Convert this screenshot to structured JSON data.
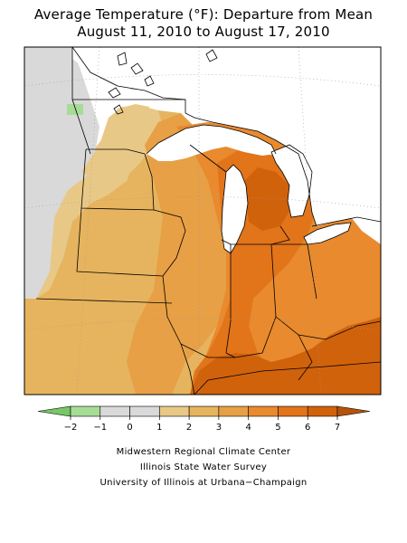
{
  "title": {
    "line1": "Average Temperature (°F): Departure from Mean",
    "line2": "August 11, 2010 to August 17, 2010"
  },
  "legend": {
    "ticks": [
      "−2",
      "−1",
      "0",
      "1",
      "2",
      "3",
      "4",
      "5",
      "6",
      "7"
    ],
    "colors": [
      "#a7dc96",
      "#d9d9d9",
      "#d9d9d9",
      "#e8c886",
      "#e6b45e",
      "#e7a045",
      "#e88a2d",
      "#e2741a",
      "#d0620c"
    ],
    "low_arrow_color": "#76c866",
    "high_arrow_color": "#b65309"
  },
  "credits": {
    "line1": "Midwestern Regional Climate Center",
    "line2": "Illinois State Water Survey",
    "line3": "University of Illinois at Urbana−Champaign"
  },
  "map_colors": {
    "lt_neg1": "#a7dc96",
    "neg1_1": "#d9d9d9",
    "1_2": "#e8c886",
    "2_3": "#e6b45e",
    "3_4": "#e7a045",
    "4_5": "#e88a2d",
    "5_6": "#e2741a",
    "6_7": "#d0620c",
    "water": "#ffffff",
    "border": "#000000"
  }
}
